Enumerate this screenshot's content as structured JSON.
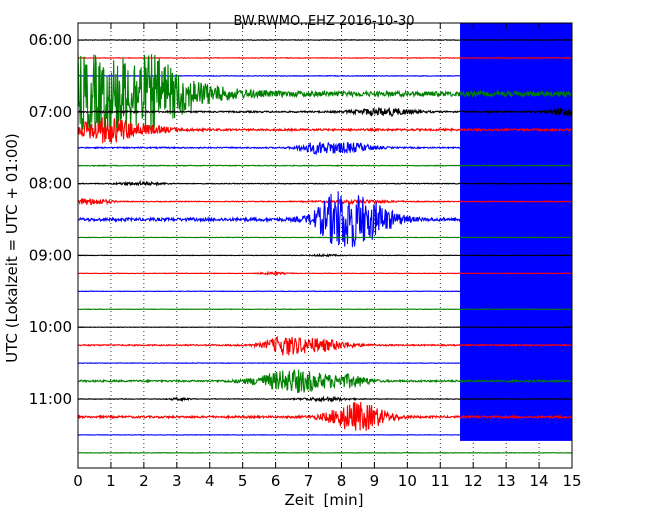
{
  "chart_data": {
    "type": "line",
    "title": "BW.RWMO..EHZ 2016-10-30",
    "xlabel": "Zeit  [min]",
    "ylabel": "UTC (Lokalzeit = UTC + 01:00)",
    "xlim": [
      0,
      15
    ],
    "x_ticks": [
      "0",
      "1",
      "2",
      "3",
      "4",
      "5",
      "6",
      "7",
      "8",
      "9",
      "10",
      "11",
      "12",
      "13",
      "14",
      "15"
    ],
    "y_tick_labels": [
      "06:00",
      "07:00",
      "08:00",
      "09:00",
      "10:00",
      "11:00"
    ],
    "grid": true,
    "row_interval_minutes": 15,
    "color_cycle": [
      "#000000",
      "#ff0000",
      "#0000ff",
      "#008000"
    ],
    "traces": [
      {
        "start": "06:00",
        "color": "black",
        "amplitude": 0.5
      },
      {
        "start": "06:15",
        "color": "red",
        "amplitude": 0.5
      },
      {
        "start": "06:30",
        "color": "blue",
        "amplitude": 0.5
      },
      {
        "start": "06:45",
        "color": "green",
        "amplitude": 4.0
      },
      {
        "start": "07:00",
        "color": "black",
        "amplitude": 1.2
      },
      {
        "start": "07:15",
        "color": "red",
        "amplitude": 1.5
      },
      {
        "start": "07:30",
        "color": "blue",
        "amplitude": 1.0
      },
      {
        "start": "07:45",
        "color": "green",
        "amplitude": 0.6
      },
      {
        "start": "08:00",
        "color": "black",
        "amplitude": 0.6
      },
      {
        "start": "08:15",
        "color": "red",
        "amplitude": 0.6
      },
      {
        "start": "08:30",
        "color": "blue",
        "amplitude": 2.5
      },
      {
        "start": "08:45",
        "color": "green",
        "amplitude": 0.4
      },
      {
        "start": "09:00",
        "color": "black",
        "amplitude": 0.4
      },
      {
        "start": "09:15",
        "color": "red",
        "amplitude": 0.4
      },
      {
        "start": "09:30",
        "color": "blue",
        "amplitude": 0.4
      },
      {
        "start": "09:45",
        "color": "green",
        "amplitude": 0.4
      },
      {
        "start": "10:00",
        "color": "black",
        "amplitude": 0.3
      },
      {
        "start": "10:15",
        "color": "red",
        "amplitude": 1.0
      },
      {
        "start": "10:30",
        "color": "blue",
        "amplitude": 0.4
      },
      {
        "start": "10:45",
        "color": "green",
        "amplitude": 1.4
      },
      {
        "start": "11:00",
        "color": "black",
        "amplitude": 0.5
      },
      {
        "start": "11:15",
        "color": "red",
        "amplitude": 1.6
      },
      {
        "start": "11:30",
        "color": "blue",
        "amplitude": 0.4
      },
      {
        "start": "11:45",
        "color": "green",
        "amplitude": 0.4
      }
    ],
    "noise_band": {
      "color": "#0000ff",
      "x_start_min": 11.6,
      "x_end_min": 15
    }
  }
}
